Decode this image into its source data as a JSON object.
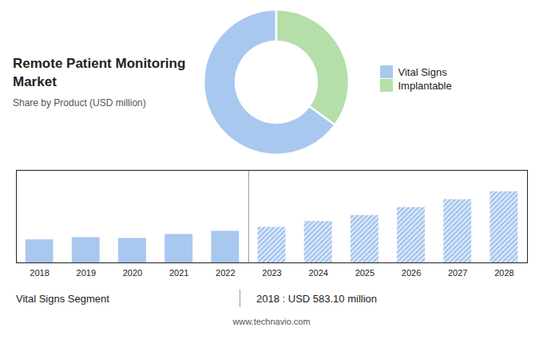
{
  "chart_data": [
    {
      "type": "pie",
      "title": "Remote Patient Monitoring\nMarket",
      "subtitle": "Share by Product (USD million)",
      "categories": [
        "Vital Signs",
        "Implantable"
      ],
      "values": [
        65,
        35
      ],
      "colors": [
        "#a8c8f0",
        "#b5dea8"
      ],
      "legend": "right"
    },
    {
      "type": "bar",
      "categories": [
        "2018",
        "2019",
        "2020",
        "2021",
        "2022",
        "2023",
        "2024",
        "2025",
        "2026",
        "2027",
        "2028"
      ],
      "series": [
        {
          "color": "#a8c8f0",
          "line_style": "solid",
          "values": [
            583.1,
            640,
            620,
            720,
            800,
            null,
            null,
            null,
            null,
            null,
            null
          ]
        },
        {
          "color": "#a8c8f0",
          "line_style": "hatched",
          "values": [
            null,
            null,
            null,
            null,
            null,
            900,
            1050,
            1200,
            1400,
            1600,
            1800
          ]
        }
      ],
      "ylim": [
        0,
        2340
      ],
      "yticks": [],
      "grid": false,
      "tick_labels": "x",
      "annotations": [
        "Vital Signs Segment",
        "2018 : USD 583.10 million",
        "www.technavio.com"
      ]
    }
  ]
}
